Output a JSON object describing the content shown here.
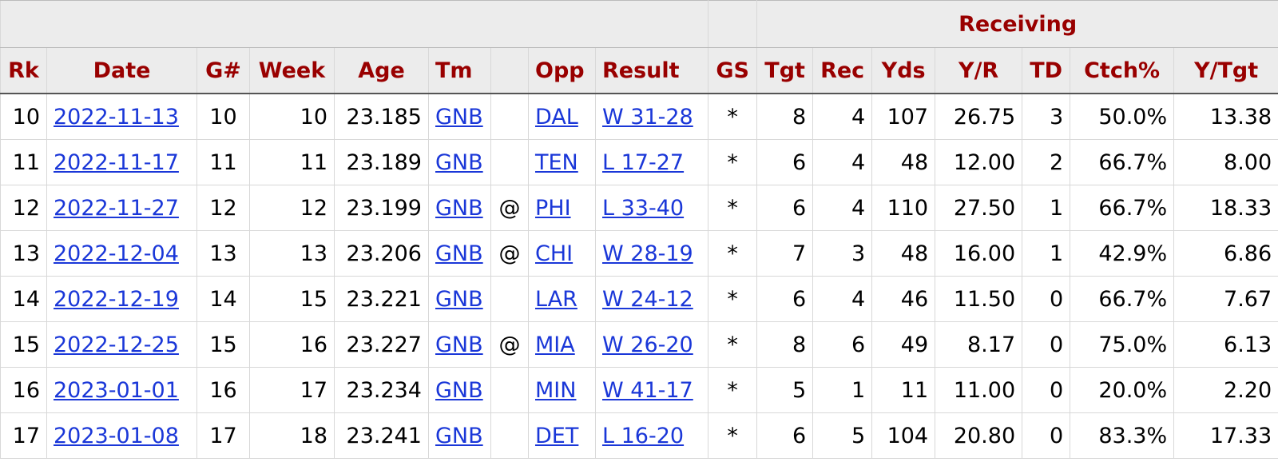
{
  "table": {
    "group_headers": {
      "receiving": "Receiving"
    },
    "columns": {
      "rk": "Rk",
      "date": "Date",
      "game_num": "G#",
      "week": "Week",
      "age": "Age",
      "team": "Tm",
      "location": "",
      "opp": "Opp",
      "result": "Result",
      "gs": "GS",
      "tgt": "Tgt",
      "rec": "Rec",
      "yds": "Yds",
      "yr": "Y/R",
      "td": "TD",
      "ctch": "Ctch%",
      "ytgt": "Y/Tgt"
    },
    "rows": [
      {
        "rk": "10",
        "date": "2022-11-13",
        "game_num": "10",
        "week": "10",
        "age": "23.185",
        "team": "GNB",
        "location": "",
        "opp": "DAL",
        "result": "W 31-28",
        "gs": "*",
        "tgt": "8",
        "rec": "4",
        "yds": "107",
        "yr": "26.75",
        "td": "3",
        "ctch": "50.0%",
        "ytgt": "13.38"
      },
      {
        "rk": "11",
        "date": "2022-11-17",
        "game_num": "11",
        "week": "11",
        "age": "23.189",
        "team": "GNB",
        "location": "",
        "opp": "TEN",
        "result": "L 17-27",
        "gs": "*",
        "tgt": "6",
        "rec": "4",
        "yds": "48",
        "yr": "12.00",
        "td": "2",
        "ctch": "66.7%",
        "ytgt": "8.00"
      },
      {
        "rk": "12",
        "date": "2022-11-27",
        "game_num": "12",
        "week": "12",
        "age": "23.199",
        "team": "GNB",
        "location": "@",
        "opp": "PHI",
        "result": "L 33-40",
        "gs": "*",
        "tgt": "6",
        "rec": "4",
        "yds": "110",
        "yr": "27.50",
        "td": "1",
        "ctch": "66.7%",
        "ytgt": "18.33"
      },
      {
        "rk": "13",
        "date": "2022-12-04",
        "game_num": "13",
        "week": "13",
        "age": "23.206",
        "team": "GNB",
        "location": "@",
        "opp": "CHI",
        "result": "W 28-19",
        "gs": "*",
        "tgt": "7",
        "rec": "3",
        "yds": "48",
        "yr": "16.00",
        "td": "1",
        "ctch": "42.9%",
        "ytgt": "6.86"
      },
      {
        "rk": "14",
        "date": "2022-12-19",
        "game_num": "14",
        "week": "15",
        "age": "23.221",
        "team": "GNB",
        "location": "",
        "opp": "LAR",
        "result": "W 24-12",
        "gs": "*",
        "tgt": "6",
        "rec": "4",
        "yds": "46",
        "yr": "11.50",
        "td": "0",
        "ctch": "66.7%",
        "ytgt": "7.67"
      },
      {
        "rk": "15",
        "date": "2022-12-25",
        "game_num": "15",
        "week": "16",
        "age": "23.227",
        "team": "GNB",
        "location": "@",
        "opp": "MIA",
        "result": "W 26-20",
        "gs": "*",
        "tgt": "8",
        "rec": "6",
        "yds": "49",
        "yr": "8.17",
        "td": "0",
        "ctch": "75.0%",
        "ytgt": "6.13"
      },
      {
        "rk": "16",
        "date": "2023-01-01",
        "game_num": "16",
        "week": "17",
        "age": "23.234",
        "team": "GNB",
        "location": "",
        "opp": "MIN",
        "result": "W 41-17",
        "gs": "*",
        "tgt": "5",
        "rec": "1",
        "yds": "11",
        "yr": "11.00",
        "td": "0",
        "ctch": "20.0%",
        "ytgt": "2.20"
      },
      {
        "rk": "17",
        "date": "2023-01-08",
        "game_num": "17",
        "week": "18",
        "age": "23.241",
        "team": "GNB",
        "location": "",
        "opp": "DET",
        "result": "L 16-20",
        "gs": "*",
        "tgt": "6",
        "rec": "5",
        "yds": "104",
        "yr": "20.80",
        "td": "0",
        "ctch": "83.3%",
        "ytgt": "17.33"
      }
    ]
  },
  "colors": {
    "header_text": "#990000",
    "header_bg": "#ececec",
    "link": "#1a37d8"
  }
}
